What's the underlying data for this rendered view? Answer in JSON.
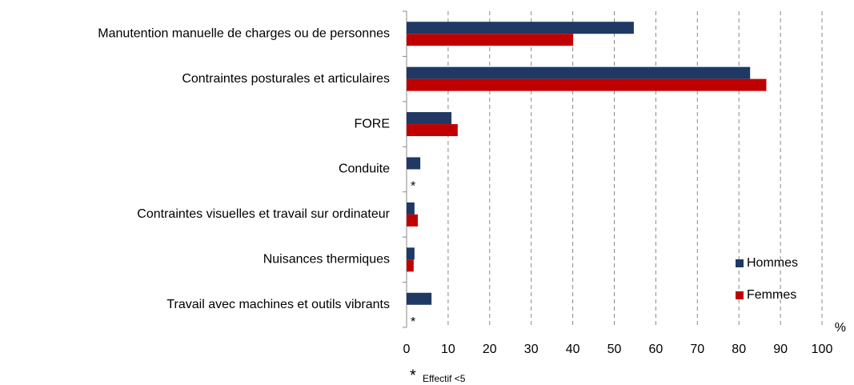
{
  "chart_data": {
    "type": "bar",
    "orientation": "horizontal",
    "categories": [
      "Manutention manuelle de charges ou de personnes",
      "Contraintes posturales et articulaires",
      "FORE",
      "Conduite",
      "Contraintes visuelles et travail sur ordinateur",
      "Nuisances thermiques",
      "Travail avec machines et outils vibrants"
    ],
    "series": [
      {
        "name": "Hommes",
        "color": "#1f3864",
        "values": [
          54.7,
          82.7,
          10.8,
          3.3,
          1.9,
          1.9,
          6.0
        ]
      },
      {
        "name": "Femmes",
        "color": "#c00000",
        "values": [
          40.1,
          86.6,
          12.3,
          null,
          2.7,
          1.7,
          null
        ]
      }
    ],
    "xlim": [
      0,
      100
    ],
    "xticks": [
      0,
      10,
      20,
      30,
      40,
      50,
      60,
      70,
      80,
      90,
      100
    ],
    "xlabel": "%",
    "grid": true,
    "legend": "lower right",
    "annotations": [
      {
        "category": "Conduite",
        "text": "*"
      },
      {
        "category": "Travail avec machines et outils vibrants",
        "text": "*"
      }
    ],
    "footnote": {
      "symbol": "*",
      "text": "Effectif <5"
    }
  }
}
